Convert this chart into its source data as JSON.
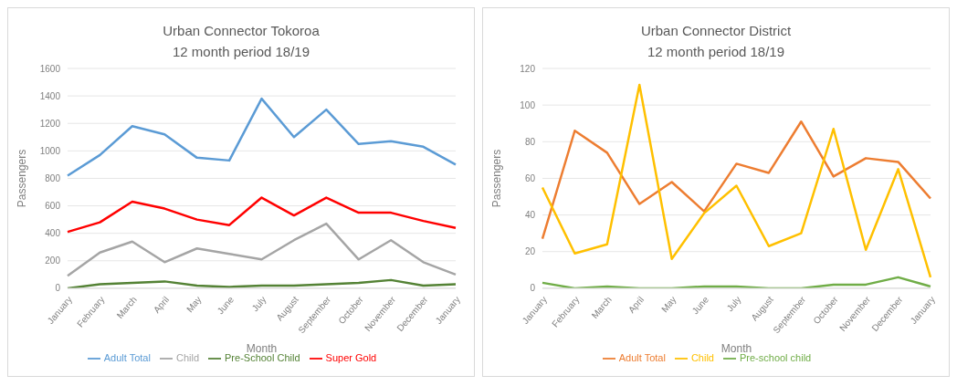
{
  "chart_data": [
    {
      "type": "line",
      "title": "Urban Connector Tokoroa",
      "subtitle": "12 month period 18/19",
      "xlabel": "Month",
      "ylabel": "Passengers",
      "categories": [
        "January",
        "February",
        "March",
        "April",
        "May",
        "June",
        "July",
        "August",
        "September",
        "October",
        "November",
        "December",
        "January"
      ],
      "ylim": [
        0,
        1600
      ],
      "yticks": [
        0,
        200,
        400,
        600,
        800,
        1000,
        1200,
        1400,
        1600
      ],
      "grid": "y",
      "legend": "bottom",
      "marker": "none",
      "series": [
        {
          "name": "Adult  Total",
          "color": "#5b9bd5",
          "values": [
            820,
            970,
            1180,
            1120,
            950,
            930,
            1380,
            1100,
            1300,
            1050,
            1070,
            1030,
            900
          ]
        },
        {
          "name": "Child",
          "color": "#a5a5a5",
          "values": [
            90,
            260,
            340,
            190,
            290,
            250,
            210,
            350,
            470,
            210,
            350,
            190,
            100
          ]
        },
        {
          "name": "Pre-School Child",
          "color": "#548235",
          "values": [
            0,
            30,
            40,
            50,
            20,
            10,
            20,
            20,
            30,
            40,
            60,
            20,
            30
          ]
        },
        {
          "name": "Super Gold",
          "color": "#ff0000",
          "values": [
            410,
            480,
            630,
            580,
            500,
            460,
            660,
            530,
            660,
            550,
            550,
            490,
            440
          ]
        }
      ]
    },
    {
      "type": "line",
      "title": "Urban Connector District",
      "subtitle": "12 month period 18/19",
      "xlabel": "Month",
      "ylabel": "Passengers",
      "categories": [
        "January",
        "February",
        "March",
        "April",
        "May",
        "June",
        "July",
        "August",
        "September",
        "October",
        "November",
        "December",
        "January"
      ],
      "ylim": [
        0,
        120
      ],
      "yticks": [
        0,
        20,
        40,
        60,
        80,
        100,
        120
      ],
      "grid": "y",
      "legend": "bottom",
      "marker": "none",
      "series": [
        {
          "name": "Adult  Total",
          "color": "#ed7d31",
          "values": [
            27,
            86,
            74,
            46,
            58,
            42,
            68,
            63,
            91,
            61,
            71,
            69,
            49
          ]
        },
        {
          "name": "Child",
          "color": "#ffc000",
          "values": [
            55,
            19,
            24,
            111,
            16,
            41,
            56,
            23,
            30,
            87,
            21,
            65,
            6
          ]
        },
        {
          "name": "Pre-school child",
          "color": "#70ad47",
          "values": [
            3,
            0,
            1,
            0,
            0,
            1,
            1,
            0,
            0,
            2,
            2,
            6,
            1
          ]
        }
      ]
    }
  ]
}
